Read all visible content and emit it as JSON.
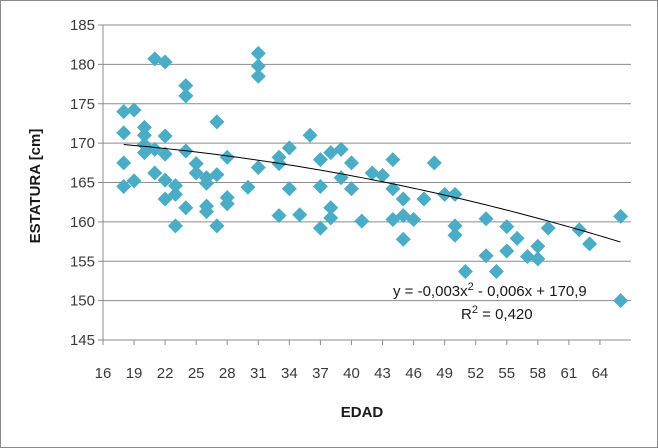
{
  "chart_data": {
    "type": "scatter",
    "xlabel": "EDAD",
    "ylabel": "ESTATURA [cm]",
    "xlim": [
      16,
      67
    ],
    "ylim": [
      145,
      185
    ],
    "x_ticks": [
      16,
      19,
      22,
      25,
      28,
      31,
      34,
      37,
      40,
      43,
      46,
      49,
      52,
      55,
      58,
      61,
      64
    ],
    "y_ticks": [
      145,
      150,
      155,
      160,
      165,
      170,
      175,
      180,
      185
    ],
    "grid": "horizontal",
    "marker_color": "#4bacc6",
    "trendline_color": "#000000",
    "trendline": {
      "a": -0.003,
      "b": -0.006,
      "c": 170.9,
      "x_from": 18,
      "x_to": 66
    },
    "annotations": {
      "equation_prefix": "y = -0,003x",
      "equation_sup": "2",
      "equation_suffix": " - 0,006x + 170,9",
      "r2_prefix": "R",
      "r2_sup": "2",
      "r2_suffix": " = 0,420"
    },
    "points": [
      [
        18,
        174.0
      ],
      [
        18,
        171.3
      ],
      [
        18,
        167.5
      ],
      [
        18,
        164.5
      ],
      [
        19,
        174.2
      ],
      [
        19,
        165.2
      ],
      [
        20,
        172.0
      ],
      [
        20,
        171.0
      ],
      [
        20,
        169.8
      ],
      [
        20,
        168.8
      ],
      [
        21,
        180.7
      ],
      [
        21,
        169.2
      ],
      [
        21,
        166.2
      ],
      [
        22,
        180.3
      ],
      [
        22,
        170.9
      ],
      [
        22,
        168.6
      ],
      [
        22,
        165.3
      ],
      [
        22,
        162.9
      ],
      [
        23,
        164.6
      ],
      [
        23,
        163.5
      ],
      [
        23,
        159.5
      ],
      [
        24,
        177.3
      ],
      [
        24,
        176.0
      ],
      [
        24,
        169.0
      ],
      [
        24,
        161.8
      ],
      [
        25,
        167.4
      ],
      [
        25,
        166.2
      ],
      [
        26,
        165.6
      ],
      [
        26,
        164.9
      ],
      [
        26,
        162.0
      ],
      [
        26,
        161.3
      ],
      [
        27,
        172.7
      ],
      [
        27,
        166.0
      ],
      [
        27,
        159.5
      ],
      [
        28,
        168.2
      ],
      [
        28,
        163.1
      ],
      [
        28,
        162.3
      ],
      [
        30,
        164.4
      ],
      [
        31,
        181.4
      ],
      [
        31,
        179.8
      ],
      [
        31,
        178.5
      ],
      [
        31,
        166.9
      ],
      [
        33,
        168.2
      ],
      [
        33,
        167.4
      ],
      [
        33,
        160.8
      ],
      [
        34,
        169.4
      ],
      [
        34,
        164.2
      ],
      [
        35,
        160.9
      ],
      [
        36,
        171.0
      ],
      [
        37,
        167.9
      ],
      [
        37,
        164.5
      ],
      [
        37,
        159.2
      ],
      [
        38,
        168.8
      ],
      [
        38,
        161.8
      ],
      [
        38,
        160.5
      ],
      [
        39,
        169.2
      ],
      [
        39,
        165.6
      ],
      [
        40,
        167.5
      ],
      [
        40,
        164.2
      ],
      [
        41,
        160.1
      ],
      [
        42,
        166.2
      ],
      [
        43,
        165.9
      ],
      [
        44,
        167.9
      ],
      [
        44,
        164.2
      ],
      [
        44,
        160.3
      ],
      [
        45,
        162.9
      ],
      [
        45,
        160.8
      ],
      [
        45,
        157.8
      ],
      [
        46,
        160.3
      ],
      [
        47,
        162.9
      ],
      [
        48,
        167.5
      ],
      [
        49,
        163.5
      ],
      [
        50,
        163.5
      ],
      [
        50,
        159.5
      ],
      [
        50,
        158.3
      ],
      [
        51,
        153.7
      ],
      [
        53,
        160.4
      ],
      [
        53,
        155.7
      ],
      [
        54,
        153.7
      ],
      [
        55,
        159.4
      ],
      [
        55,
        156.3
      ],
      [
        56,
        157.9
      ],
      [
        57,
        155.6
      ],
      [
        58,
        156.9
      ],
      [
        58,
        155.3
      ],
      [
        59,
        159.2
      ],
      [
        62,
        159.0
      ],
      [
        63,
        157.2
      ],
      [
        66,
        160.7
      ],
      [
        66,
        150.0
      ]
    ]
  }
}
